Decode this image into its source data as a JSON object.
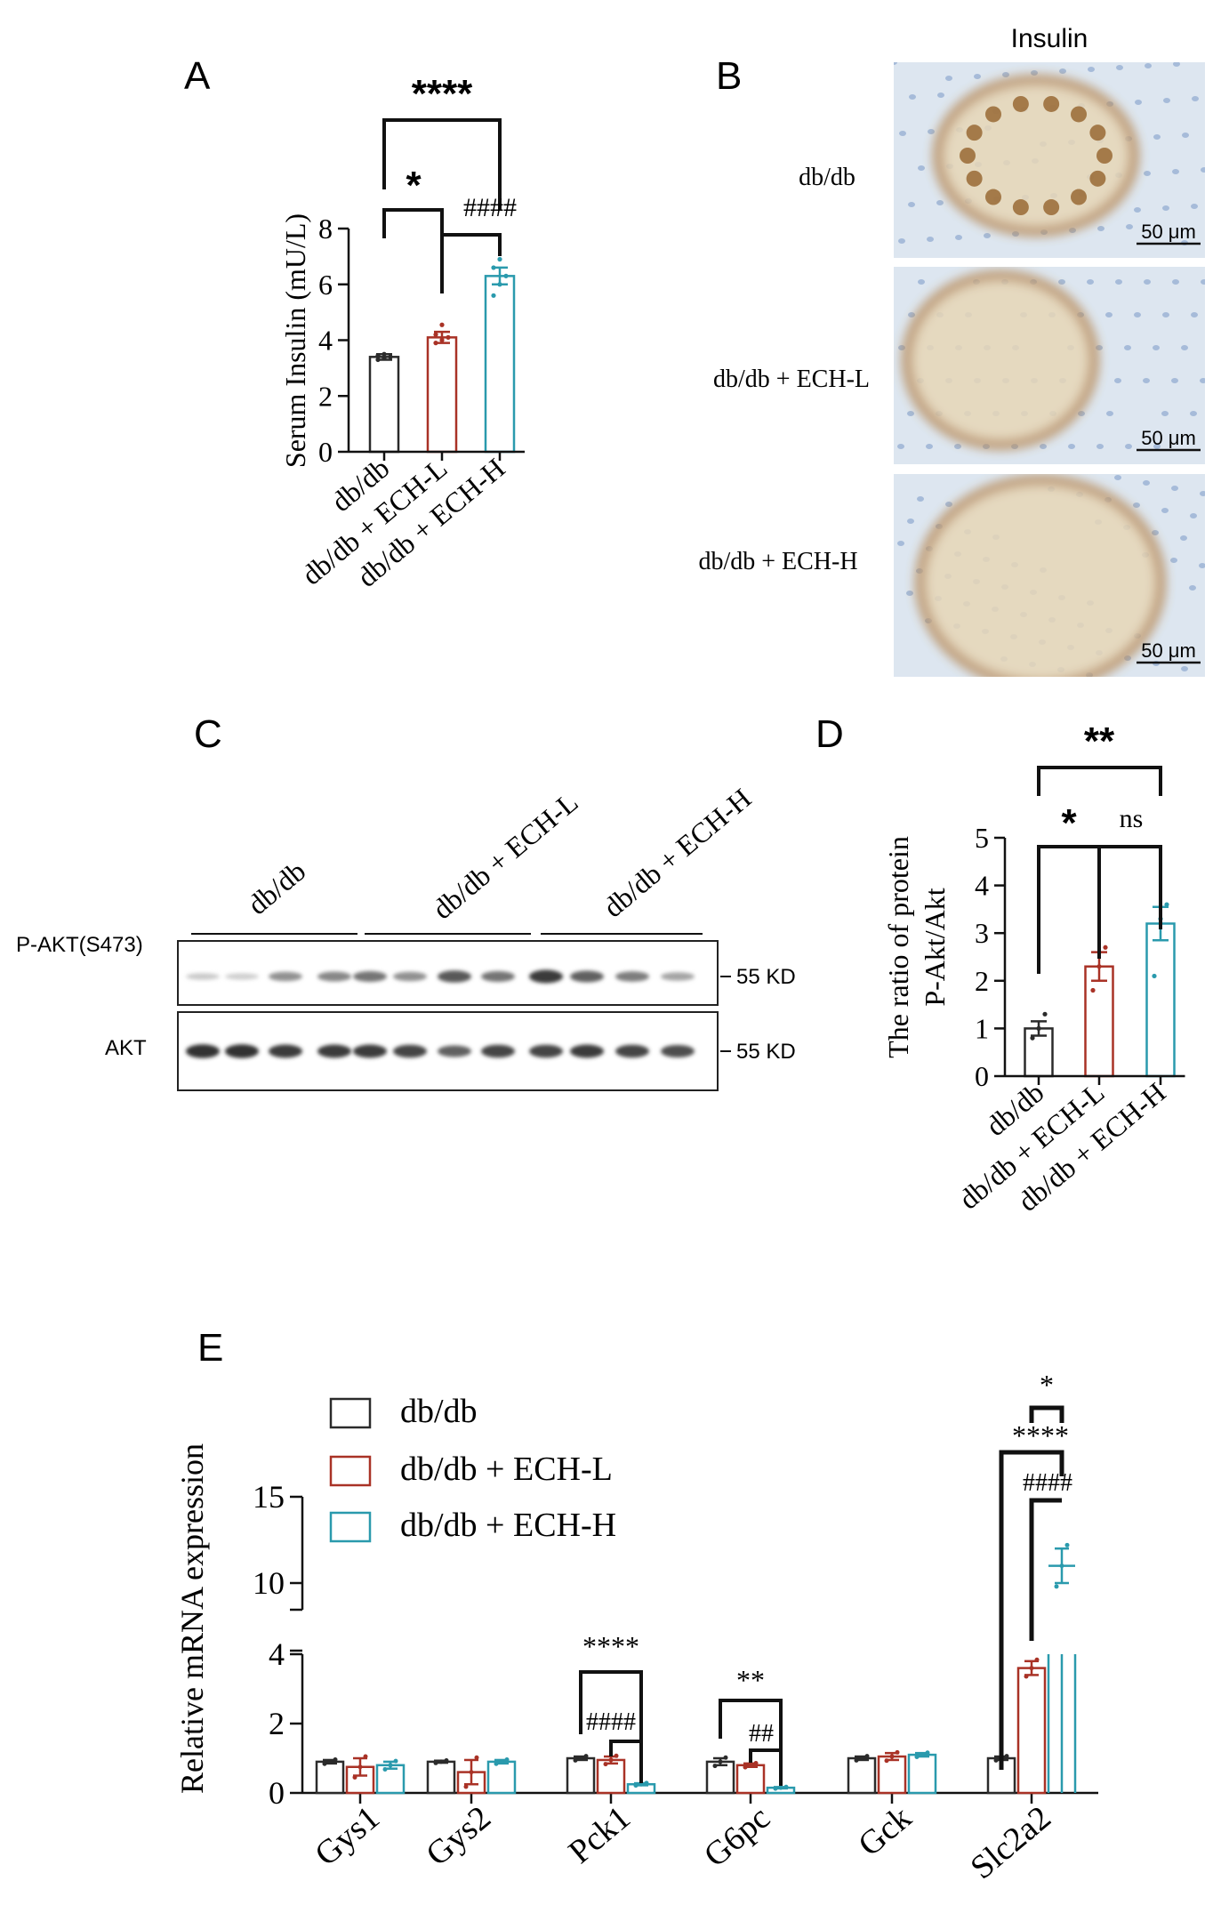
{
  "colors": {
    "dbdb": "#2b2b2b",
    "ech_l": "#a93226",
    "ech_h": "#2a9aad",
    "black": "#111111",
    "tissue_bg": "#dde6f0",
    "stain": "#b07a38"
  },
  "panel_letters": {
    "A": "A",
    "B": "B",
    "C": "C",
    "D": "D",
    "E": "E"
  },
  "groups": [
    "db/db",
    "db/db + ECH-L",
    "db/db + ECH-H"
  ],
  "chart_data": [
    {
      "id": "A",
      "type": "bar",
      "categories": [
        "db/db",
        "db/db + ECH-L",
        "db/db + ECH-H"
      ],
      "values": [
        3.4,
        4.1,
        6.3
      ],
      "errors": [
        0.1,
        0.2,
        0.3
      ],
      "points": [
        [
          3.3,
          3.35,
          3.4,
          3.45,
          3.5
        ],
        [
          3.9,
          4.0,
          4.1,
          4.2,
          4.55
        ],
        [
          5.6,
          6.0,
          6.3,
          6.6,
          6.9
        ]
      ],
      "ylabel": "Serum Insulin (mU/L)",
      "ylim": [
        0,
        8
      ],
      "yticks": [
        "0",
        "2",
        "4",
        "6",
        "8"
      ],
      "significance": [
        {
          "from": 0,
          "to": 2,
          "label": "****",
          "level": 2
        },
        {
          "from": 0,
          "to": 1,
          "label": "*",
          "level": 1
        },
        {
          "from": 1,
          "to": 2,
          "label": "####",
          "level": 0
        }
      ]
    },
    {
      "id": "D",
      "type": "bar",
      "categories": [
        "db/db",
        "db/db + ECH-L",
        "db/db + ECH-H"
      ],
      "values": [
        1.0,
        2.3,
        3.2
      ],
      "errors": [
        0.15,
        0.3,
        0.35
      ],
      "points": [
        [
          0.8,
          1.0,
          1.3
        ],
        [
          1.8,
          2.3,
          2.7
        ],
        [
          2.1,
          3.3,
          3.6
        ]
      ],
      "ylabel": [
        "The ratio of protein",
        "P-Akt/Akt"
      ],
      "ylim": [
        0,
        5
      ],
      "yticks": [
        "0",
        "1",
        "2",
        "3",
        "4",
        "5"
      ],
      "significance": [
        {
          "from": 0,
          "to": 2,
          "label": "**",
          "level": 1
        },
        {
          "from": 0,
          "to": 1,
          "label": "*",
          "level": 0
        },
        {
          "from": 1,
          "to": 2,
          "label": "ns",
          "level": 0
        }
      ]
    },
    {
      "id": "E",
      "type": "bar",
      "categories": [
        "Gys1",
        "Gys2",
        "Pck1",
        "G6pc",
        "Gck",
        "Slc2a2"
      ],
      "series": [
        {
          "name": "db/db",
          "values": [
            0.9,
            0.9,
            1.0,
            0.9,
            1.0,
            1.0
          ],
          "errors": [
            0.05,
            0.03,
            0.05,
            0.1,
            0.05,
            0.05
          ]
        },
        {
          "name": "db/db + ECH-L",
          "values": [
            0.75,
            0.6,
            0.95,
            0.8,
            1.05,
            3.6
          ],
          "errors": [
            0.25,
            0.35,
            0.1,
            0.05,
            0.1,
            0.2
          ]
        },
        {
          "name": "db/db + ECH-H",
          "values": [
            0.8,
            0.9,
            0.25,
            0.15,
            1.1,
            11.0
          ],
          "errors": [
            0.1,
            0.05,
            0.03,
            0.02,
            0.05,
            1.0
          ]
        }
      ],
      "ylabel": "Relative  mRNA expression",
      "axis_break": [
        4,
        10
      ],
      "yticks_low": [
        "0",
        "2",
        "4"
      ],
      "yticks_high": [
        "10",
        "15"
      ],
      "ylim": [
        0,
        15
      ],
      "significance": [
        {
          "category": 2,
          "label": "****",
          "upper": "****",
          "lower": "####"
        },
        {
          "category": 3,
          "label": "**",
          "upper": "**",
          "lower": "##"
        },
        {
          "category": 5,
          "upper": "****",
          "lower": "####",
          "top": "*"
        }
      ]
    }
  ],
  "panel_b": {
    "title": "Insulin",
    "rows": [
      {
        "label": "db/db",
        "scalebar": "50 μm"
      },
      {
        "label": "db/db + ECH-L",
        "scalebar": "50 μm"
      },
      {
        "label": "db/db + ECH-H",
        "scalebar": "50 μm"
      }
    ]
  },
  "panel_c": {
    "lanes_header": [
      "db/db",
      "db/db + ECH-L",
      "db/db + ECH-H"
    ],
    "blots": [
      {
        "name": "P-AKT(S473)",
        "kd": "55 KD",
        "intensities": [
          0.15,
          0.12,
          0.45,
          0.5,
          0.6,
          0.45,
          0.75,
          0.6,
          0.9,
          0.7,
          0.55,
          0.35
        ]
      },
      {
        "name": "AKT",
        "kd": "55 KD",
        "intensities": [
          0.95,
          0.95,
          0.9,
          0.9,
          0.9,
          0.85,
          0.7,
          0.85,
          0.85,
          0.9,
          0.85,
          0.8
        ]
      }
    ]
  }
}
